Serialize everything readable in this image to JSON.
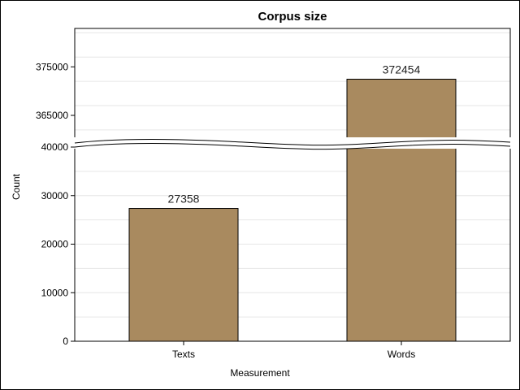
{
  "chart_data": {
    "type": "bar",
    "title": "Corpus size",
    "xlabel": "Measurement",
    "ylabel": "Count",
    "categories": [
      "Texts",
      "Words"
    ],
    "values": [
      27358,
      372454
    ],
    "data_labels": [
      "27358",
      "372454"
    ],
    "axis_break": true,
    "lower_segment": {
      "ylim": [
        0,
        40000
      ],
      "ticks": [
        0,
        10000,
        20000,
        30000,
        40000
      ]
    },
    "upper_segment": {
      "ylim": [
        360000,
        385000
      ],
      "ticks": [
        365000,
        375000
      ]
    },
    "grid": true,
    "legend": "none",
    "bar_color": "#a98a5f",
    "bar_edge_color": "#000000"
  }
}
